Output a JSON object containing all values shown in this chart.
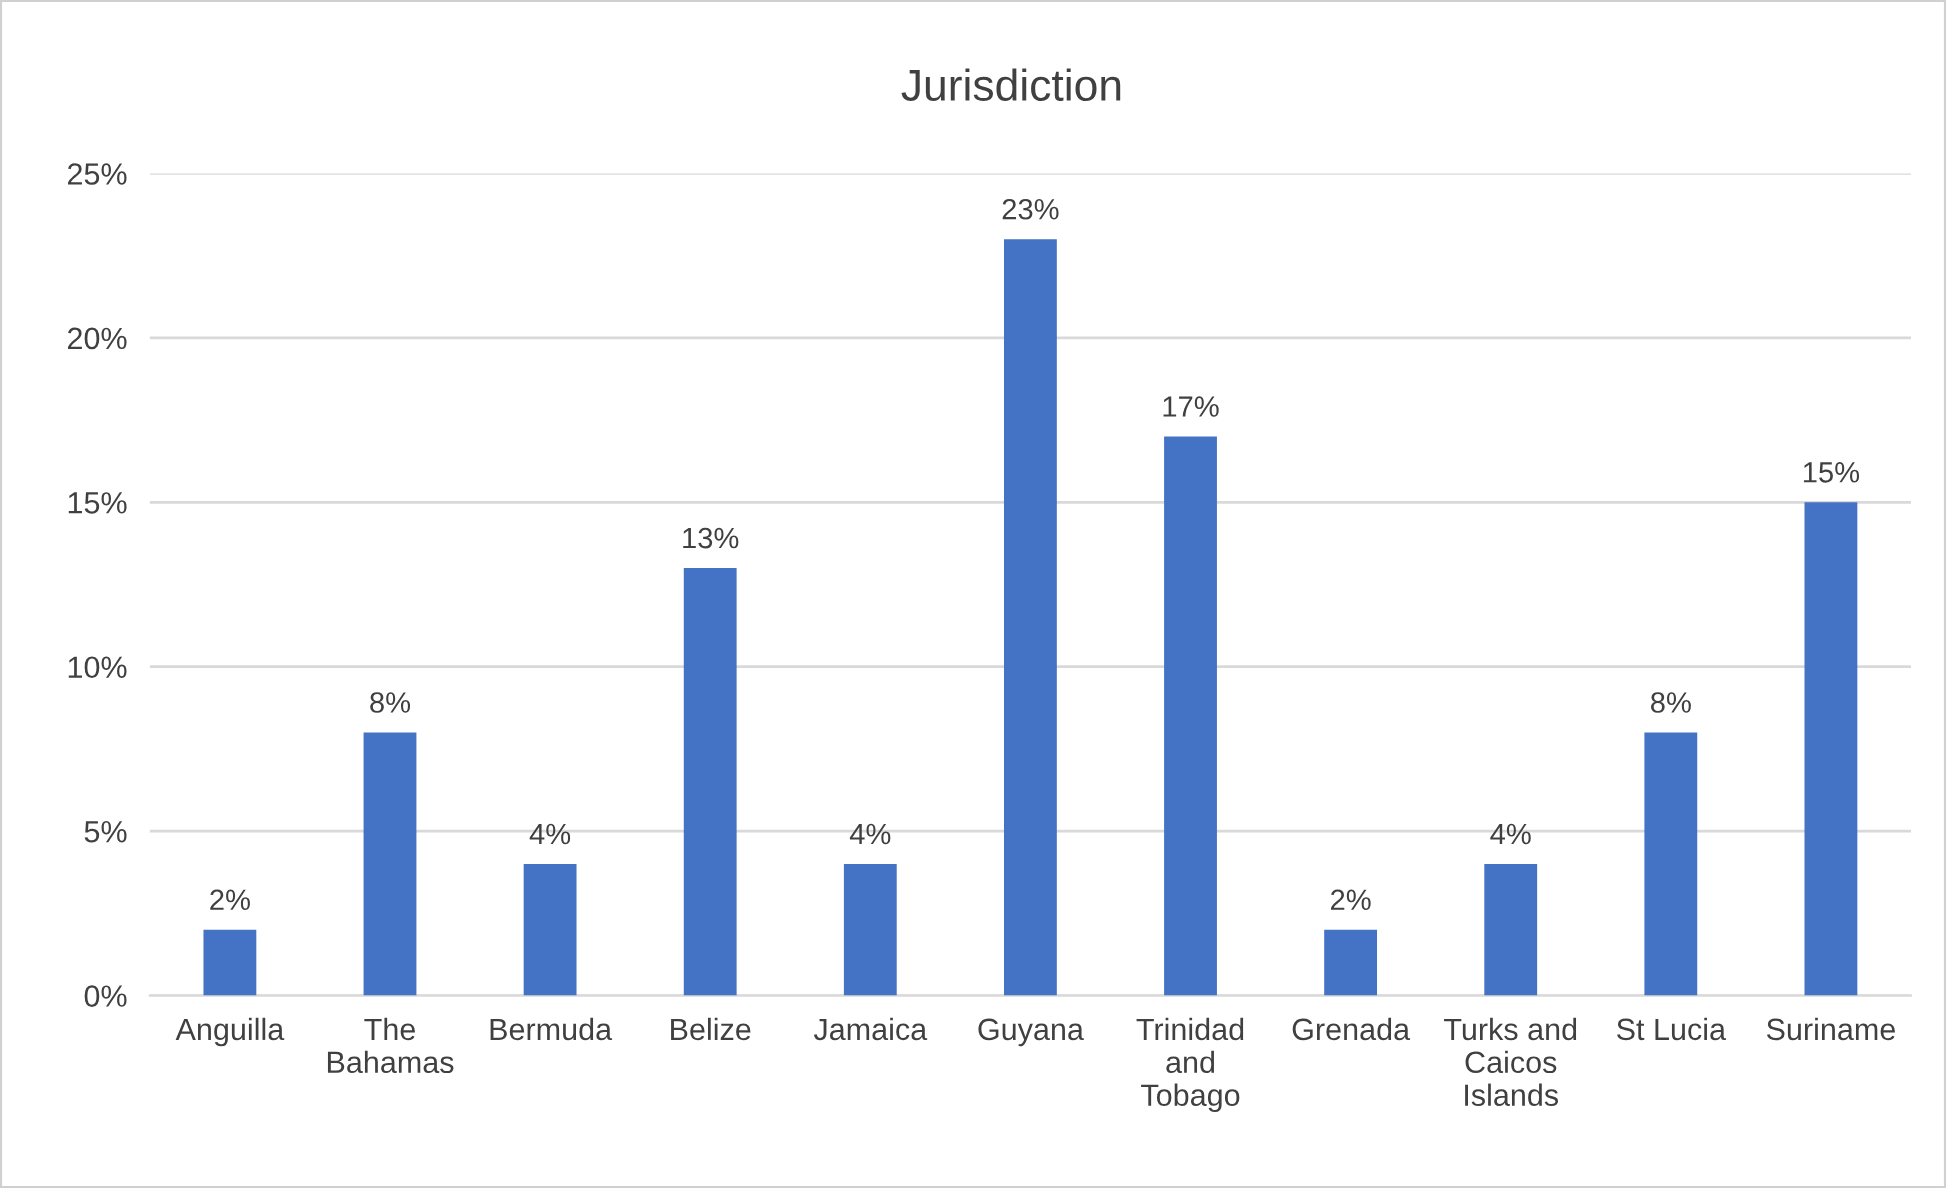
{
  "chart_data": {
    "type": "bar",
    "title": "Jurisdiction",
    "categories": [
      "Anguilla",
      "The Bahamas",
      "Bermuda",
      "Belize",
      "Jamaica",
      "Guyana",
      "Trinidad and Tobago",
      "Grenada",
      "Turks and Caicos Islands",
      "St Lucia",
      "Suriname"
    ],
    "values": [
      2,
      8,
      4,
      13,
      4,
      23,
      17,
      2,
      4,
      8,
      15
    ],
    "value_labels": [
      "2%",
      "8%",
      "4%",
      "13%",
      "4%",
      "23%",
      "17%",
      "2%",
      "4%",
      "8%",
      "15%"
    ],
    "color": "#4472c4",
    "ylim": [
      0,
      25
    ],
    "yticks": [
      {
        "value": 0,
        "label": "0%"
      },
      {
        "value": 5,
        "label": "5%"
      },
      {
        "value": 10,
        "label": "10%"
      },
      {
        "value": 15,
        "label": "15%"
      },
      {
        "value": 20,
        "label": "20%"
      },
      {
        "value": 25,
        "label": "25%"
      }
    ],
    "grid": "y",
    "legend": false
  }
}
